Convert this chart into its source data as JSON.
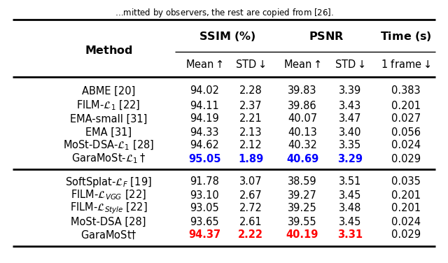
{
  "group1": [
    [
      "ABME [20]",
      "94.02",
      "2.28",
      "39.83",
      "3.39",
      "0.383",
      "black"
    ],
    [
      "FILM-$\\mathcal{L}_1$ [22]",
      "94.11",
      "2.37",
      "39.86",
      "3.43",
      "0.201",
      "black"
    ],
    [
      "EMA-small [31]",
      "94.19",
      "2.21",
      "40.07",
      "3.47",
      "0.027",
      "black"
    ],
    [
      "EMA [31]",
      "94.33",
      "2.13",
      "40.13",
      "3.40",
      "0.056",
      "black"
    ],
    [
      "MoSt-DSA-$\\mathcal{L}_1$ [28]",
      "94.62",
      "2.12",
      "40.32",
      "3.35",
      "0.024",
      "black"
    ],
    [
      "GaraMoSt-$\\mathcal{L}_1\\dagger$",
      "95.05",
      "1.89",
      "40.69",
      "3.29",
      "0.029",
      "blue"
    ]
  ],
  "group2": [
    [
      "SoftSplat-$\\mathcal{L}_F$ [19]",
      "91.78",
      "3.07",
      "38.59",
      "3.51",
      "0.035",
      "black"
    ],
    [
      "FILM-$\\mathcal{L}_{VGG}$ [22]",
      "93.10",
      "2.67",
      "39.27",
      "3.45",
      "0.201",
      "black"
    ],
    [
      "FILM-$\\mathcal{L}_{Style}$ [22]",
      "93.05",
      "2.72",
      "39.25",
      "3.48",
      "0.201",
      "black"
    ],
    [
      "MoSt-DSA [28]",
      "93.65",
      "2.61",
      "39.55",
      "3.45",
      "0.024",
      "black"
    ],
    [
      "GaraMoSt$\\dagger$",
      "94.37",
      "2.22",
      "40.19",
      "3.31",
      "0.029",
      "red"
    ]
  ],
  "background_color": "#ffffff"
}
